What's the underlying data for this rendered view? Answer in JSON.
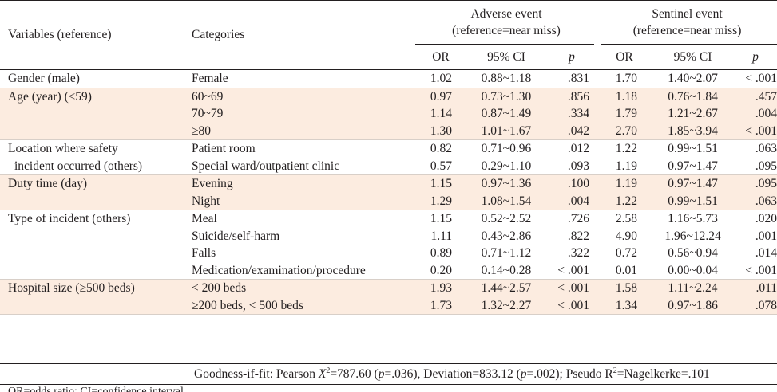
{
  "headers": {
    "variables": "Variables (reference)",
    "categories": "Categories",
    "adverse_line1": "Adverse event",
    "adverse_line2": "(reference=near miss)",
    "sentinel_line1": "Sentinel event",
    "sentinel_line2": "(reference=near miss)",
    "or": "OR",
    "ci": "95% CI",
    "p": "p"
  },
  "groups": [
    {
      "variable": [
        "Gender (male)"
      ],
      "shaded": false,
      "rows": [
        {
          "category": "Female",
          "a_or": "1.02",
          "a_ci": "0.88~1.18",
          "a_p": ".831",
          "s_or": "1.70",
          "s_ci": "1.40~2.07",
          "s_p": "< .001"
        }
      ]
    },
    {
      "variable": [
        "Age (year) (≤59)"
      ],
      "shaded": true,
      "rows": [
        {
          "category": "60~69",
          "a_or": "0.97",
          "a_ci": "0.73~1.30",
          "a_p": ".856",
          "s_or": "1.18",
          "s_ci": "0.76~1.84",
          "s_p": ".457"
        },
        {
          "category": "70~79",
          "a_or": "1.14",
          "a_ci": "0.87~1.49",
          "a_p": ".334",
          "s_or": "1.79",
          "s_ci": "1.21~2.67",
          "s_p": ".004"
        },
        {
          "category": "≥80",
          "a_or": "1.30",
          "a_ci": "1.01~1.67",
          "a_p": ".042",
          "s_or": "2.70",
          "s_ci": "1.85~3.94",
          "s_p": "< .001"
        }
      ]
    },
    {
      "variable": [
        "Location where safety",
        "incident occurred (others)"
      ],
      "shaded": false,
      "rows": [
        {
          "category": "Patient room",
          "a_or": "0.82",
          "a_ci": "0.71~0.96",
          "a_p": ".012",
          "s_or": "1.22",
          "s_ci": "0.99~1.51",
          "s_p": ".063"
        },
        {
          "category": "Special ward/outpatient clinic",
          "a_or": "0.57",
          "a_ci": "0.29~1.10",
          "a_p": ".093",
          "s_or": "1.19",
          "s_ci": "0.97~1.47",
          "s_p": ".095"
        }
      ]
    },
    {
      "variable": [
        "Duty time (day)"
      ],
      "shaded": true,
      "rows": [
        {
          "category": "Evening",
          "a_or": "1.15",
          "a_ci": "0.97~1.36",
          "a_p": ".100",
          "s_or": "1.19",
          "s_ci": "0.97~1.47",
          "s_p": ".095"
        },
        {
          "category": "Night",
          "a_or": "1.29",
          "a_ci": "1.08~1.54",
          "a_p": ".004",
          "s_or": "1.22",
          "s_ci": "0.99~1.51",
          "s_p": ".063"
        }
      ]
    },
    {
      "variable": [
        "Type of incident (others)"
      ],
      "shaded": false,
      "rows": [
        {
          "category": "Meal",
          "a_or": "1.15",
          "a_ci": "0.52~2.52",
          "a_p": ".726",
          "s_or": "2.58",
          "s_ci": "1.16~5.73",
          "s_p": ".020"
        },
        {
          "category": "Suicide/self-harm",
          "a_or": "1.11",
          "a_ci": "0.43~2.86",
          "a_p": ".822",
          "s_or": "4.90",
          "s_ci": "1.96~12.24",
          "s_p": ".001"
        },
        {
          "category": "Falls",
          "a_or": "0.89",
          "a_ci": "0.71~1.12",
          "a_p": ".322",
          "s_or": "0.72",
          "s_ci": "0.56~0.94",
          "s_p": ".014"
        },
        {
          "category": "Medication/examination/procedure",
          "a_or": "0.20",
          "a_ci": "0.14~0.28",
          "a_p": "< .001",
          "s_or": "0.01",
          "s_ci": "0.00~0.04",
          "s_p": "< .001"
        }
      ]
    },
    {
      "variable": [
        "Hospital size (≥500 beds)"
      ],
      "shaded": true,
      "rows": [
        {
          "category": "< 200 beds",
          "a_or": "1.93",
          "a_ci": "1.44~2.57",
          "a_p": "< .001",
          "s_or": "1.58",
          "s_ci": "1.11~2.24",
          "s_p": ".011"
        },
        {
          "category": "≥200 beds, < 500 beds",
          "a_or": "1.73",
          "a_ci": "1.32~2.27",
          "a_p": "< .001",
          "s_or": "1.34",
          "s_ci": "0.97~1.86",
          "s_p": ".078"
        }
      ]
    }
  ],
  "footnote": {
    "prefix": "Goodness-if-fit: Pearson ",
    "chi_symbol": "X",
    "chi_sup": "2",
    "pearson_value": "=787.60 (",
    "p1_label": "p",
    "p1_value": "=.036), Deviation=833.12 (",
    "p2_label": "p",
    "p2_value": "=.002); Pseudo R",
    "r_sup": "2",
    "tail": "=Nagelkerke=.101"
  },
  "below_note": "OR=odds ratio; CI=confidence interval."
}
